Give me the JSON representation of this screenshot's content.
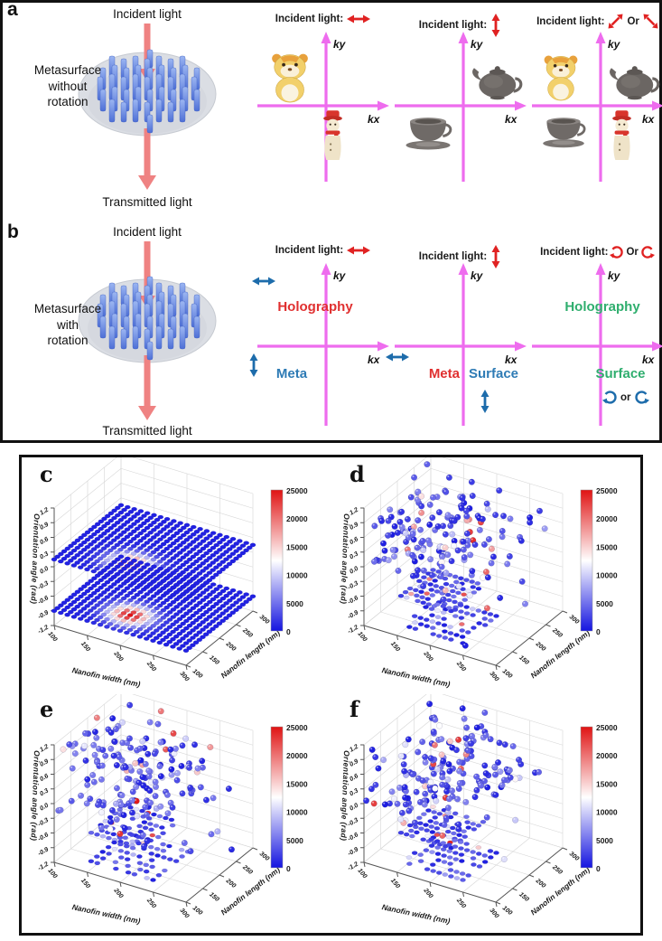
{
  "kspace_axes": {
    "x": "kx",
    "y": "ky"
  },
  "panel_a": {
    "label": "a",
    "schematic": {
      "top_label": "Incident light",
      "side_lines": [
        "Metasurface",
        "without",
        "rotation"
      ],
      "bottom_label": "Transmitted light"
    },
    "diagrams": [
      {
        "header": "Incident light:",
        "polarization": "horizontal",
        "objects": [
          "tiger-figurine",
          "snowman-figurine"
        ]
      },
      {
        "header": "Incident light:",
        "polarization": "vertical",
        "objects": [
          "teapot",
          "teacup"
        ]
      },
      {
        "header": "Incident light:",
        "polarization": "diagonal",
        "or_label": "Or",
        "objects": [
          "tiger-figurine",
          "teapot",
          "teacup",
          "snowman-figurine"
        ]
      }
    ]
  },
  "panel_b": {
    "label": "b",
    "schematic": {
      "top_label": "Incident light",
      "side_lines": [
        "Metasurface",
        "with",
        "rotation"
      ],
      "bottom_label": "Transmitted light"
    },
    "diagrams": [
      {
        "header": "Incident light:",
        "polarization": "horizontal",
        "labels": {
          "top_left": "Holography",
          "bottom_left": "Meta"
        },
        "label_colors": {
          "top_left": "#e03030",
          "bottom_left": "#2e7bb5"
        }
      },
      {
        "header": "Incident light:",
        "polarization": "vertical",
        "labels": {
          "bottom_left": "Meta",
          "bottom_right": "Surface"
        },
        "label_colors": {
          "bottom_left": "#e03030",
          "bottom_right": "#2e7bb5"
        }
      },
      {
        "header": "Incident light:",
        "polarization": "circular",
        "or_label": "Or",
        "or_small": "or",
        "labels": {
          "top": "Holography",
          "bottom": "Surface"
        },
        "label_colors": {
          "top": "#2fae6e",
          "bottom": "#2fae6e"
        }
      }
    ]
  },
  "colors": {
    "axis_magenta": "#ee6cee",
    "red_arrow": "#e02222",
    "blue_arrow": "#1d6cab",
    "salmon_arrow": "#ef8282",
    "pillar_blue": "#5272d8",
    "disk_gray": "#dbdee4"
  },
  "chart_data": [
    {
      "id": "c",
      "panel_label": "c",
      "type": "scatter",
      "projection": "3d",
      "xlabel": "Nanofin width (nm)",
      "ylabel": "Nanofin length (nm)",
      "zlabel": "Orientation angle (rad)",
      "xlim": [
        100,
        300
      ],
      "ylim": [
        100,
        300
      ],
      "zlim": [
        -1.2,
        1.2
      ],
      "xticks": [
        "100",
        "150",
        "200",
        "250",
        "300"
      ],
      "yticks": [
        "100",
        "150",
        "200",
        "250",
        "300"
      ],
      "zticks": [
        "1.2",
        "0.9",
        "0.6",
        "0.3",
        "0.0",
        "-0.3",
        "-0.6",
        "-0.9",
        "-1.2"
      ],
      "colorbar": {
        "ticks": [
          "25000",
          "20000",
          "15000",
          "10000",
          "5000",
          "0"
        ],
        "vmin": 0,
        "vmax": 25000,
        "low": "#1414e0",
        "mid": "#ffffff",
        "high": "#e01414"
      },
      "content": {
        "mode": "planes",
        "description": "Two 21x21 planar grids of nanofin simulations; intensity peak ~25000 near width 190 nm length 150 nm, background ~700",
        "planes": [
          {
            "z": 0.15,
            "grid": 21,
            "background": 700,
            "peak_value": 25000,
            "peak_x": 190,
            "peak_y": 150,
            "sigma_nm": 21
          },
          {
            "z": -0.9,
            "grid": 21,
            "background": 700,
            "peak_value": 25000,
            "peak_x": 190,
            "peak_y": 150,
            "sigma_nm": 21
          }
        ]
      }
    },
    {
      "id": "d",
      "panel_label": "d",
      "type": "scatter",
      "projection": "3d",
      "xlabel": "Nanofin width (nm)",
      "ylabel": "Nanofin length (nm)",
      "zlabel": "Orientation angle (rad)",
      "xlim": [
        100,
        300
      ],
      "ylim": [
        100,
        300
      ],
      "zlim": [
        -1.2,
        1.2
      ],
      "xticks": [
        "100",
        "150",
        "200",
        "250",
        "300"
      ],
      "yticks": [
        "100",
        "150",
        "200",
        "250",
        "300"
      ],
      "zticks": [
        "1.2",
        "0.9",
        "0.6",
        "0.3",
        "0.0",
        "-0.3",
        "-0.6",
        "-0.9",
        "-1.2"
      ],
      "colorbar": {
        "ticks": [
          "25000",
          "20000",
          "15000",
          "10000",
          "5000",
          "0"
        ],
        "vmin": 0,
        "vmax": 25000,
        "low": "#1414e0",
        "mid": "#ffffff",
        "high": "#e01414"
      },
      "content": {
        "mode": "scatter",
        "seed": 11,
        "value_distribution": "80% of points 400-6000, 14% 6500-13000, 6% 13500-25000",
        "clusters": [
          {
            "n": 55,
            "x": [
              100,
              215
            ],
            "y": [
              100,
              300
            ],
            "z": [
              0.5,
              1.15
            ]
          },
          {
            "n": 72,
            "x": [
              100,
              225
            ],
            "y": [
              100,
              290
            ],
            "z": [
              -0.25,
              0.35
            ]
          },
          {
            "n": 30,
            "x": [
              110,
              290
            ],
            "y": [
              100,
              300
            ],
            "z": [
              -1.1,
              1.1
            ]
          },
          {
            "n": 20,
            "x": [
              160,
              275
            ],
            "y": [
              140,
              300
            ],
            "z": [
              0.1,
              1.0
            ]
          }
        ],
        "patches": [
          {
            "z": -0.55,
            "x": [
              144,
              220
            ],
            "y": [
              124,
              220
            ],
            "nu": 10,
            "nv": 8,
            "fill": 0.72
          },
          {
            "z": -0.95,
            "x": [
              160,
              250
            ],
            "y": [
              100,
              200
            ],
            "nu": 11,
            "nv": 7,
            "fill": 0.68
          }
        ]
      }
    },
    {
      "id": "e",
      "panel_label": "e",
      "type": "scatter",
      "projection": "3d",
      "xlabel": "Nanofin width (nm)",
      "ylabel": "Nanofin length (nm)",
      "zlabel": "Orientation angle (rad)",
      "xlim": [
        100,
        300
      ],
      "ylim": [
        100,
        300
      ],
      "zlim": [
        -1.2,
        1.2
      ],
      "xticks": [
        "100",
        "150",
        "200",
        "250",
        "300"
      ],
      "yticks": [
        "100",
        "150",
        "200",
        "250",
        "300"
      ],
      "zticks": [
        "1.2",
        "0.9",
        "0.6",
        "0.3",
        "0.0",
        "-0.3",
        "-0.6",
        "-0.9",
        "-1.2"
      ],
      "colorbar": {
        "ticks": [
          "25000",
          "20000",
          "15000",
          "10000",
          "5000",
          "0"
        ],
        "vmin": 0,
        "vmax": 25000,
        "low": "#1414e0",
        "mid": "#ffffff",
        "high": "#e01414"
      },
      "content": {
        "mode": "scatter",
        "seed": 23,
        "value_distribution": "80% of points 400-6000, 14% 6500-13000, 6% 13500-25000",
        "clusters": [
          {
            "n": 58,
            "x": [
              100,
              215
            ],
            "y": [
              100,
              300
            ],
            "z": [
              0.5,
              1.15
            ]
          },
          {
            "n": 75,
            "x": [
              100,
              230
            ],
            "y": [
              100,
              290
            ],
            "z": [
              -0.3,
              0.35
            ]
          },
          {
            "n": 32,
            "x": [
              110,
              290
            ],
            "y": [
              100,
              300
            ],
            "z": [
              -1.1,
              1.1
            ]
          },
          {
            "n": 18,
            "x": [
              160,
              275
            ],
            "y": [
              140,
              300
            ],
            "z": [
              0.1,
              1.0
            ]
          }
        ],
        "patches": [
          {
            "z": -0.55,
            "x": [
              144,
              224
            ],
            "y": [
              124,
              224
            ],
            "nu": 10,
            "nv": 8,
            "fill": 0.7
          },
          {
            "z": -0.95,
            "x": [
              156,
              250
            ],
            "y": [
              100,
              204
            ],
            "nu": 11,
            "nv": 7,
            "fill": 0.66
          }
        ]
      }
    },
    {
      "id": "f",
      "panel_label": "f",
      "type": "scatter",
      "projection": "3d",
      "xlabel": "Nanofin width (nm)",
      "ylabel": "Nanofin length (nm)",
      "zlabel": "Orientation angle (rad)",
      "xlim": [
        100,
        300
      ],
      "ylim": [
        100,
        300
      ],
      "zlim": [
        -1.2,
        1.2
      ],
      "xticks": [
        "100",
        "150",
        "200",
        "250",
        "300"
      ],
      "yticks": [
        "100",
        "150",
        "200",
        "250",
        "300"
      ],
      "zticks": [
        "1.2",
        "0.9",
        "0.6",
        "0.3",
        "0.0",
        "-0.3",
        "-0.6",
        "-0.9",
        "-1.2"
      ],
      "colorbar": {
        "ticks": [
          "25000",
          "20000",
          "15000",
          "10000",
          "5000",
          "0"
        ],
        "vmin": 0,
        "vmax": 25000,
        "low": "#1414e0",
        "mid": "#ffffff",
        "high": "#e01414"
      },
      "content": {
        "mode": "scatter",
        "seed": 37,
        "value_distribution": "80% of points 400-6000, 14% 6500-13000, 6% 13500-25000",
        "clusters": [
          {
            "n": 60,
            "x": [
              100,
              215
            ],
            "y": [
              100,
              300
            ],
            "z": [
              0.5,
              1.15
            ]
          },
          {
            "n": 70,
            "x": [
              100,
              225
            ],
            "y": [
              100,
              290
            ],
            "z": [
              -0.25,
              0.35
            ]
          },
          {
            "n": 30,
            "x": [
              110,
              290
            ],
            "y": [
              100,
              300
            ],
            "z": [
              -1.1,
              1.1
            ]
          },
          {
            "n": 22,
            "x": [
              160,
              275
            ],
            "y": [
              140,
              300
            ],
            "z": [
              0.1,
              1.0
            ]
          }
        ],
        "patches": [
          {
            "z": -0.55,
            "x": [
              144,
              220
            ],
            "y": [
              124,
              220
            ],
            "nu": 10,
            "nv": 8,
            "fill": 0.72
          },
          {
            "z": -0.95,
            "x": [
              160,
              250
            ],
            "y": [
              100,
              200
            ],
            "nu": 11,
            "nv": 7,
            "fill": 0.68
          }
        ]
      }
    }
  ]
}
